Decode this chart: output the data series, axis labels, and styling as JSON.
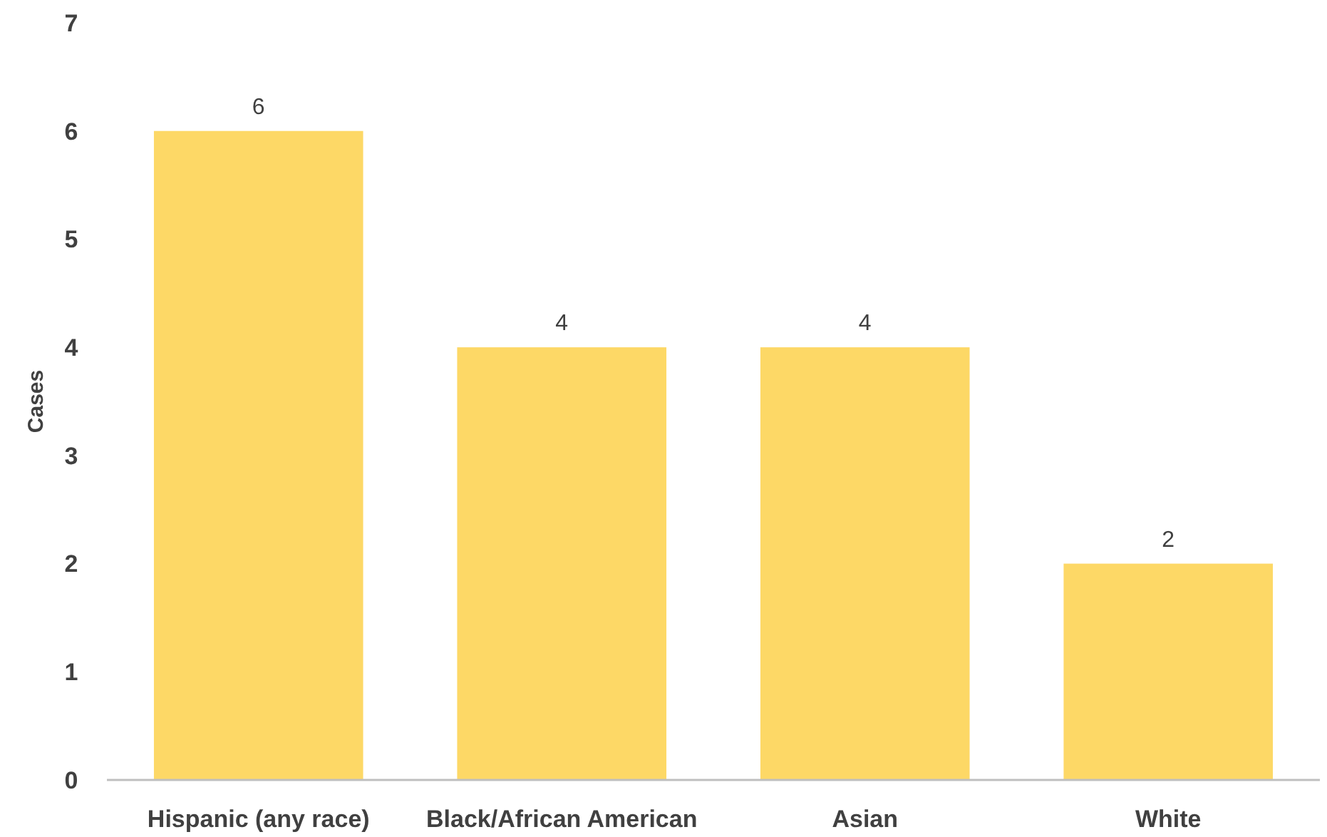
{
  "chart_data": {
    "type": "bar",
    "ylabel": "Cases",
    "categories": [
      "Hispanic (any race)",
      "Black/African American",
      "Asian",
      "White"
    ],
    "values": [
      6,
      4,
      4,
      2
    ],
    "color": "#fdd866",
    "ylim": [
      0,
      7
    ],
    "yticks": [
      0,
      1,
      2,
      3,
      4,
      5,
      6,
      7
    ],
    "grid": false,
    "data_labels": true
  }
}
